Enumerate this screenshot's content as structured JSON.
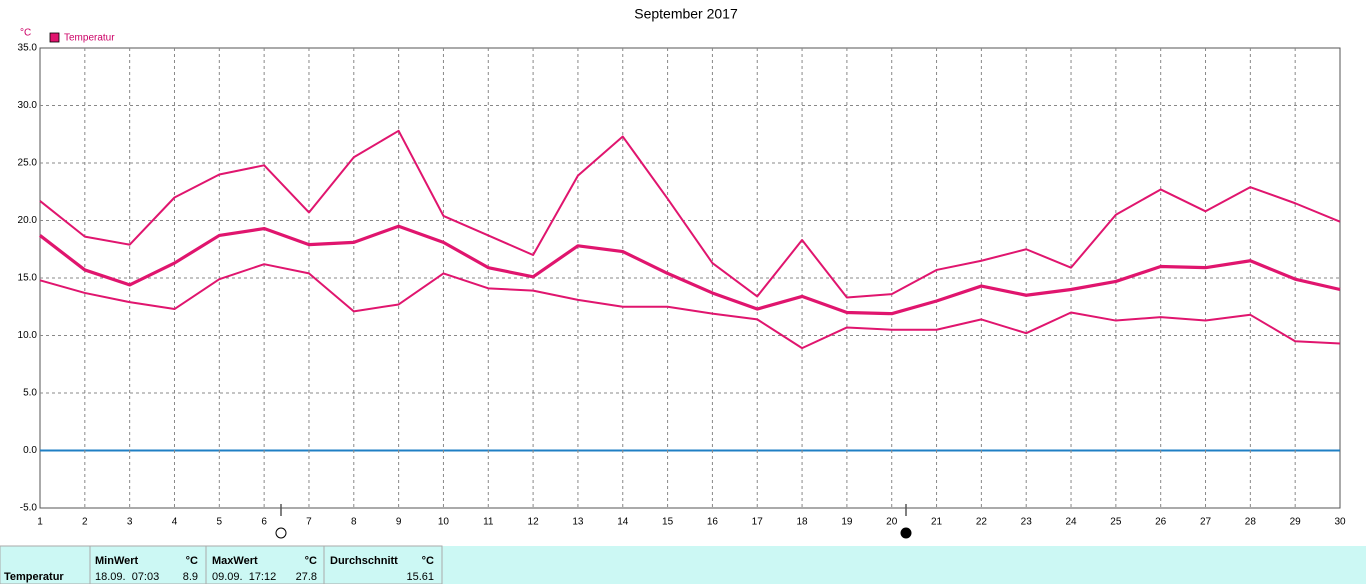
{
  "chart_data": {
    "type": "line",
    "title": "September 2017",
    "y_unit": "°C",
    "x": [
      1,
      2,
      3,
      4,
      5,
      6,
      7,
      8,
      9,
      10,
      11,
      12,
      13,
      14,
      15,
      16,
      17,
      18,
      19,
      20,
      21,
      22,
      23,
      24,
      25,
      26,
      27,
      28,
      29,
      30
    ],
    "xlim": [
      1,
      30
    ],
    "xticks": [
      1,
      2,
      3,
      4,
      5,
      6,
      7,
      8,
      9,
      10,
      11,
      12,
      13,
      14,
      15,
      16,
      17,
      18,
      19,
      20,
      21,
      22,
      23,
      24,
      25,
      26,
      27,
      28,
      29,
      30
    ],
    "ylim": [
      -5,
      35
    ],
    "yticks": [
      {
        "value": -5,
        "label": "-5.0"
      },
      {
        "value": 0,
        "label": "0.0"
      },
      {
        "value": 5,
        "label": "5.0"
      },
      {
        "value": 10,
        "label": "10.0"
      },
      {
        "value": 15,
        "label": "15.0"
      },
      {
        "value": 20,
        "label": "20.0"
      },
      {
        "value": 25,
        "label": "25.0"
      },
      {
        "value": 30,
        "label": "30.0"
      },
      {
        "value": 35,
        "label": "35.0"
      }
    ],
    "grid": true,
    "zero_line_color": "#1f7fc4",
    "series": [
      {
        "color": "#e0156e",
        "line_width": 2,
        "values": [
          21.7,
          18.6,
          17.9,
          22.0,
          24.0,
          24.8,
          20.7,
          25.5,
          27.8,
          20.4,
          18.7,
          17.0,
          23.9,
          27.3,
          21.9,
          16.3,
          13.4,
          18.3,
          13.3,
          13.6,
          15.7,
          16.5,
          17.5,
          15.9,
          20.5,
          22.7,
          20.8,
          22.9,
          21.5,
          19.9
        ]
      },
      {
        "name": "Temperatur",
        "color": "#e0156e",
        "line_width": 3.2,
        "values": [
          18.7,
          15.7,
          14.4,
          16.3,
          18.7,
          19.3,
          17.9,
          18.1,
          19.5,
          18.1,
          15.9,
          15.1,
          17.8,
          17.3,
          15.4,
          13.7,
          12.3,
          13.4,
          12.0,
          11.9,
          13.0,
          14.3,
          13.5,
          14.0,
          14.7,
          16.0,
          15.9,
          16.5,
          14.9,
          14.0
        ]
      },
      {
        "color": "#e0156e",
        "line_width": 2,
        "values": [
          14.8,
          13.7,
          12.9,
          12.3,
          14.9,
          16.2,
          15.4,
          12.1,
          12.7,
          15.4,
          14.1,
          13.9,
          13.1,
          12.5,
          12.5,
          11.9,
          11.4,
          8.9,
          10.7,
          10.5,
          10.5,
          11.4,
          10.2,
          12.0,
          11.3,
          11.6,
          11.3,
          11.8,
          9.5,
          9.3
        ]
      }
    ]
  },
  "table": {
    "header": [
      "MinWert",
      "°C",
      "MaxWert",
      "°C",
      "Durchschnitt",
      "°C"
    ],
    "rows": [
      [
        "Temperatur",
        "18.09.  07:03",
        "8.9",
        "09.09.  17:12",
        "27.8",
        "15.61"
      ]
    ]
  }
}
